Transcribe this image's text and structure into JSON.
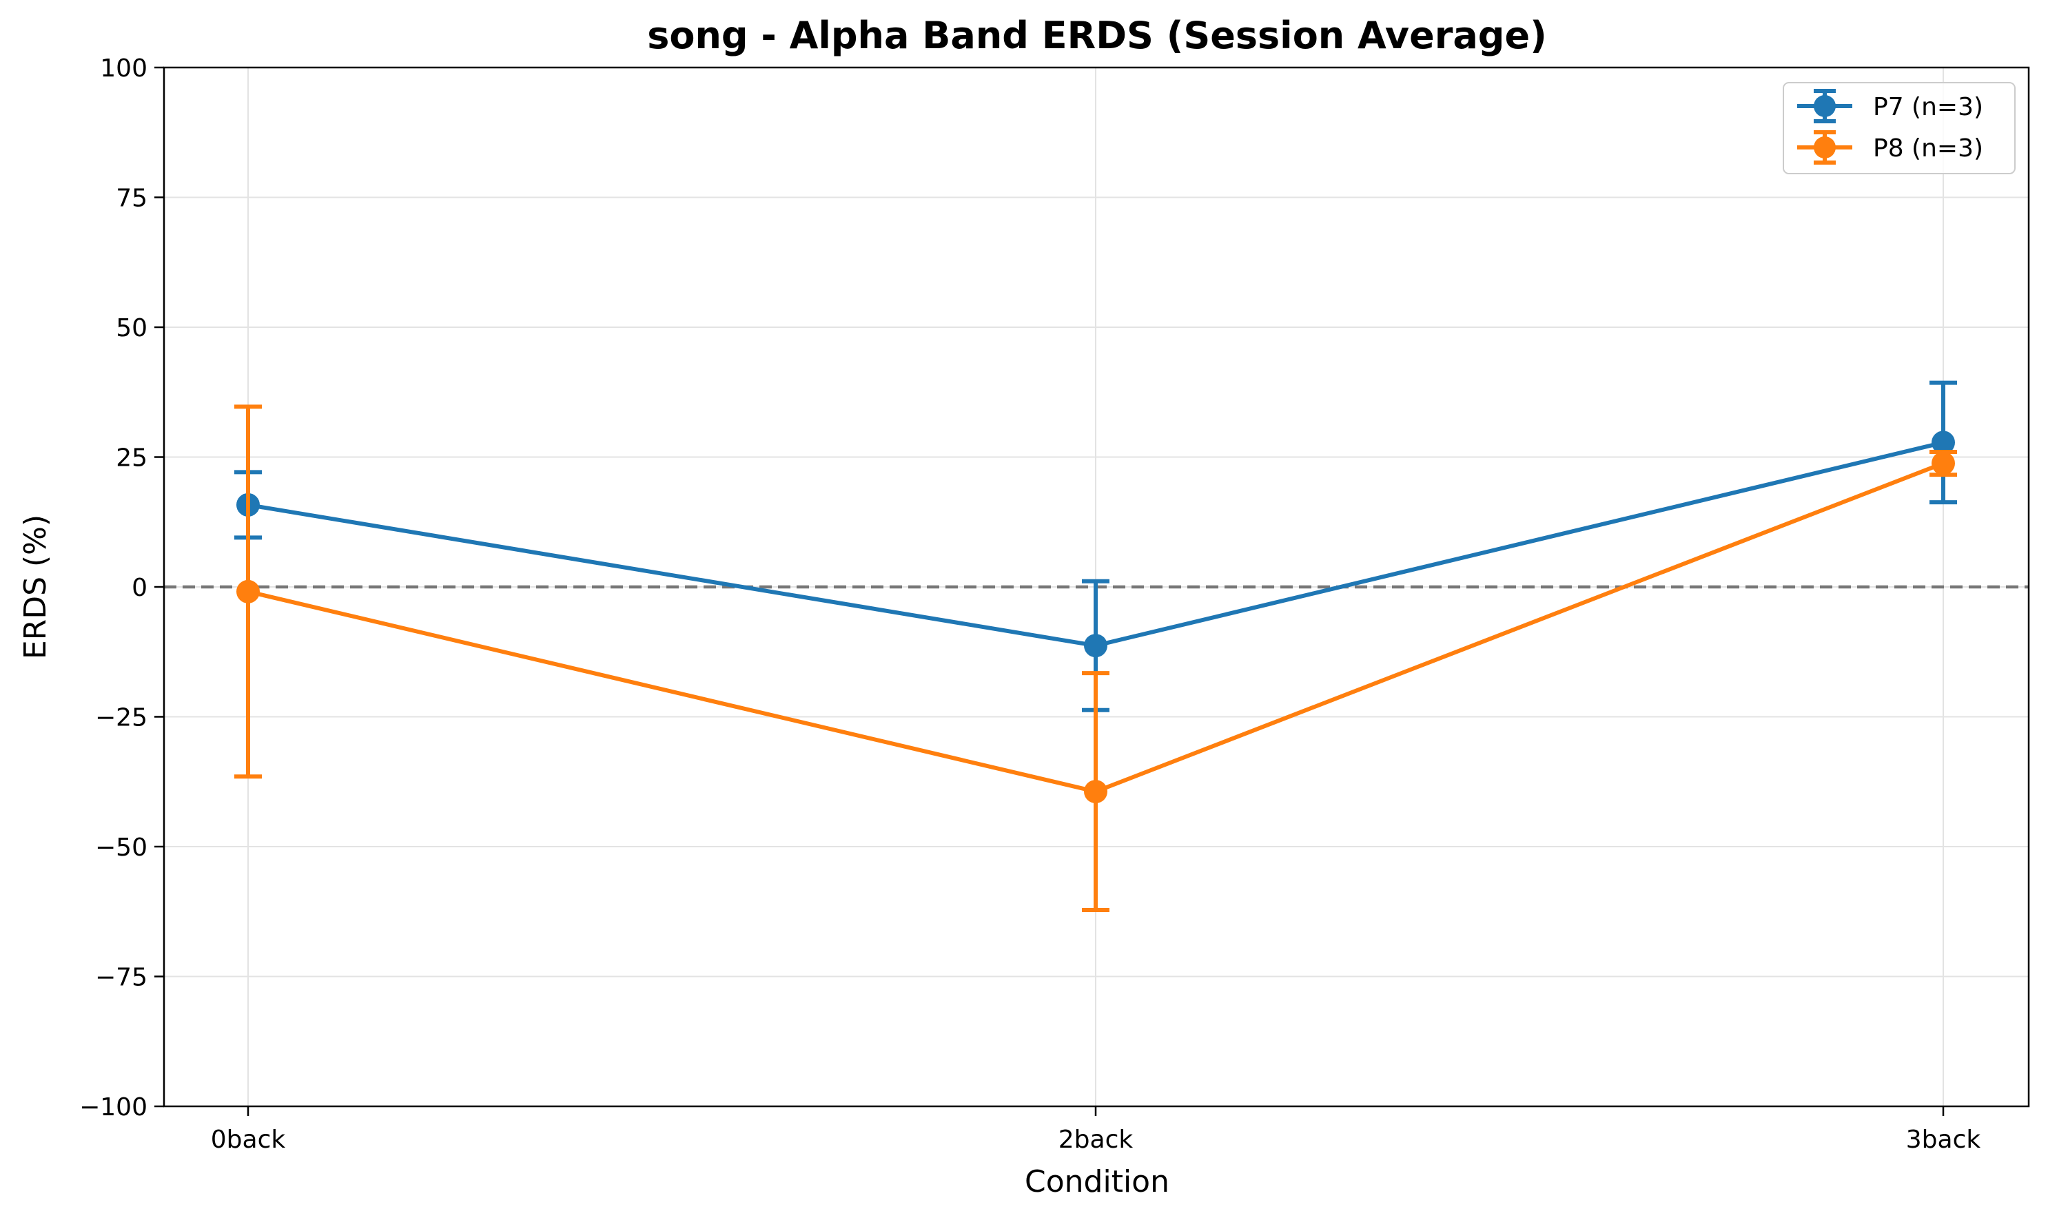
{
  "chart_data": {
    "type": "line",
    "title": "song - Alpha Band ERDS (Session Average)",
    "xlabel": "Condition",
    "ylabel": "ERDS (%)",
    "categories": [
      "0back",
      "2back",
      "3back"
    ],
    "ylim": [
      -100,
      100
    ],
    "yticks": [
      100,
      75,
      50,
      25,
      0,
      -25,
      -50,
      -75,
      -100
    ],
    "ytick_labels": [
      "100",
      "75",
      "50",
      "25",
      "0",
      "−25",
      "−50",
      "−75",
      "−100"
    ],
    "grid": true,
    "reference_line": {
      "y": 0,
      "style": "dashed",
      "color": "#777777"
    },
    "legend": "top-right",
    "series": [
      {
        "name": "P7 (n=3)",
        "color": "#1f77b4",
        "values": [
          15.8,
          -11.3,
          27.8
        ],
        "error": [
          6.3,
          12.4,
          11.5
        ]
      },
      {
        "name": "P8 (n=3)",
        "color": "#ff7f0e",
        "values": [
          -0.9,
          -39.4,
          23.8
        ],
        "error": [
          35.6,
          22.8,
          2.2
        ]
      }
    ]
  }
}
